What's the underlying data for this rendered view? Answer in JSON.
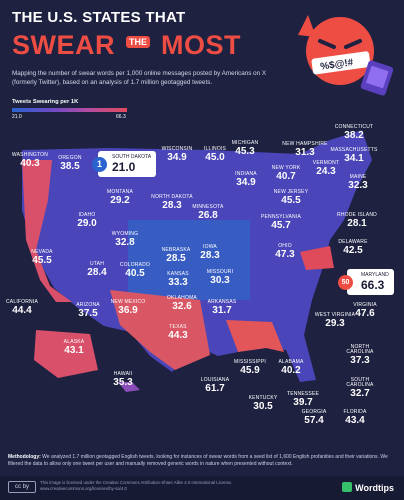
{
  "header": {
    "title_line1": "THE U.S. STATES THAT",
    "title_word1": "SWEAR",
    "title_word2": "THE",
    "title_word3": "MOST",
    "subtitle": "Mapping the number of swear words per 1,000 online messages posted by Americans on X (formerly Twitter), based on an analysis of 1.7 million geotagged tweets.",
    "mascot_speech": "%$@!#"
  },
  "legend": {
    "title": "Tweets Swearing per 1K",
    "min_label": "21.0",
    "max_label": "66.3"
  },
  "colors": {
    "background": "#1e2140",
    "low": "#2a63cf",
    "mid": "#8a4cb8",
    "high": "#e04b5c",
    "accent": "#ee4d44"
  },
  "chart_data": {
    "type": "choropleth",
    "metric": "Tweets Swearing per 1K",
    "range": [
      21.0,
      66.3
    ],
    "states": [
      {
        "name": "WASHINGTON",
        "value": 40.3
      },
      {
        "name": "OREGON",
        "value": 38.5
      },
      {
        "name": "CALIFORNIA",
        "value": 44.4
      },
      {
        "name": "NEVADA",
        "value": 45.5
      },
      {
        "name": "IDAHO",
        "value": 29.0
      },
      {
        "name": "MONTANA",
        "value": 29.2
      },
      {
        "name": "WYOMING",
        "value": 32.8
      },
      {
        "name": "UTAH",
        "value": 28.4
      },
      {
        "name": "ARIZONA",
        "value": 37.5
      },
      {
        "name": "COLORADO",
        "value": 40.5
      },
      {
        "name": "NEW MEXICO",
        "value": 36.9
      },
      {
        "name": "NORTH DAKOTA",
        "value": 28.3
      },
      {
        "name": "SOUTH DAKOTA",
        "value": 21.0
      },
      {
        "name": "NEBRASKA",
        "value": 28.5
      },
      {
        "name": "KANSAS",
        "value": 33.3
      },
      {
        "name": "OKLAHOMA",
        "value": 32.6
      },
      {
        "name": "TEXAS",
        "value": 44.3
      },
      {
        "name": "MINNESOTA",
        "value": 26.8
      },
      {
        "name": "IOWA",
        "value": 28.3
      },
      {
        "name": "MISSOURI",
        "value": 30.3
      },
      {
        "name": "ARKANSAS",
        "value": 31.7
      },
      {
        "name": "LOUISIANA",
        "value": 61.7
      },
      {
        "name": "WISCONSIN",
        "value": 34.9
      },
      {
        "name": "ILLINOIS",
        "value": 45.0
      },
      {
        "name": "MICHIGAN",
        "value": 45.3
      },
      {
        "name": "INDIANA",
        "value": 34.9
      },
      {
        "name": "OHIO",
        "value": 47.3
      },
      {
        "name": "KENTUCKY",
        "value": 30.5
      },
      {
        "name": "TENNESSEE",
        "value": 39.7
      },
      {
        "name": "MISSISSIPPI",
        "value": 45.9
      },
      {
        "name": "ALABAMA",
        "value": 40.2
      },
      {
        "name": "GEORGIA",
        "value": 57.4
      },
      {
        "name": "FLORIDA",
        "value": 43.4
      },
      {
        "name": "SOUTH CAROLINA",
        "value": 32.7
      },
      {
        "name": "NORTH CAROLINA",
        "value": 37.3
      },
      {
        "name": "VIRGINIA",
        "value": 47.6
      },
      {
        "name": "WEST VIRGINIA",
        "value": 29.3
      },
      {
        "name": "PENNSYLVANIA",
        "value": 45.7
      },
      {
        "name": "NEW YORK",
        "value": 40.7
      },
      {
        "name": "NEW JERSEY",
        "value": 45.5
      },
      {
        "name": "DELAWARE",
        "value": 42.5
      },
      {
        "name": "MARYLAND",
        "value": 66.3
      },
      {
        "name": "CONNECTICUT",
        "value": 38.2
      },
      {
        "name": "RHODE ISLAND",
        "value": 28.1
      },
      {
        "name": "MASSACHUSETTS",
        "value": 34.1
      },
      {
        "name": "VERMONT",
        "value": 24.3
      },
      {
        "name": "NEW HAMPSHIRE",
        "value": 31.3
      },
      {
        "name": "MAINE",
        "value": 32.3
      },
      {
        "name": "ALASKA",
        "value": 43.1
      },
      {
        "name": "HAWAII",
        "value": 35.3
      }
    ]
  },
  "callouts": {
    "lowest": {
      "rank": "1",
      "state": "SOUTH DAKOTA",
      "value": "21.0"
    },
    "highest": {
      "rank": "50",
      "state": "MARYLAND",
      "value": "66.3"
    }
  },
  "methodology": {
    "label": "Methodology:",
    "text": "We analyzed 1.7 million geotagged English tweets, looking for instances of swear words from a seed list of 1,600 English profanities and their variations. We filtered the data to allow only one tweet per user and manually removed generic words in nature when presented without context."
  },
  "footer": {
    "cc": "cc by",
    "license": "This image is licensed under the Creative Commons Attribution-Share Alike 4.0 International License. www.creativecommons.org/licenses/by-sa/4.0",
    "brand": "Wordtips"
  }
}
